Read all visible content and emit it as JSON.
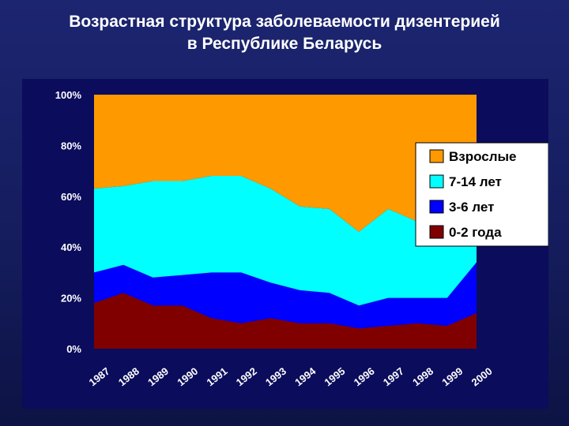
{
  "title": {
    "line1": "Возрастная структура заболеваемости дизентерией",
    "line2": "в Республике Беларусь"
  },
  "chart_data": {
    "type": "area",
    "stacked": true,
    "percent": true,
    "title": "Возрастная структура заболеваемости дизентерией в Республике Беларусь",
    "x": [
      "1987",
      "1988",
      "1989",
      "1990",
      "1991",
      "1992",
      "1993",
      "1994",
      "1995",
      "1996",
      "1997",
      "1998",
      "1999",
      "2000"
    ],
    "yticks": [
      "0%",
      "20%",
      "40%",
      "60%",
      "80%",
      "100%"
    ],
    "ylim": [
      0,
      100
    ],
    "legend_position": "right",
    "series": [
      {
        "name": "0-2 года",
        "color": "#800000",
        "values": [
          18,
          22,
          17,
          17,
          12,
          10,
          12,
          10,
          10,
          8,
          9,
          10,
          9,
          14
        ]
      },
      {
        "name": "3-6 лет",
        "color": "#0000ff",
        "values": [
          12,
          11,
          11,
          12,
          18,
          20,
          14,
          13,
          12,
          9,
          11,
          10,
          11,
          20
        ]
      },
      {
        "name": "7-14 лет",
        "color": "#00ffff",
        "values": [
          33,
          31,
          38,
          37,
          38,
          38,
          37,
          33,
          33,
          29,
          35,
          30,
          31,
          32
        ]
      },
      {
        "name": "Взрослые",
        "color": "#ff9900",
        "values": [
          37,
          36,
          34,
          34,
          32,
          32,
          37,
          44,
          45,
          54,
          45,
          50,
          49,
          34
        ]
      }
    ]
  }
}
